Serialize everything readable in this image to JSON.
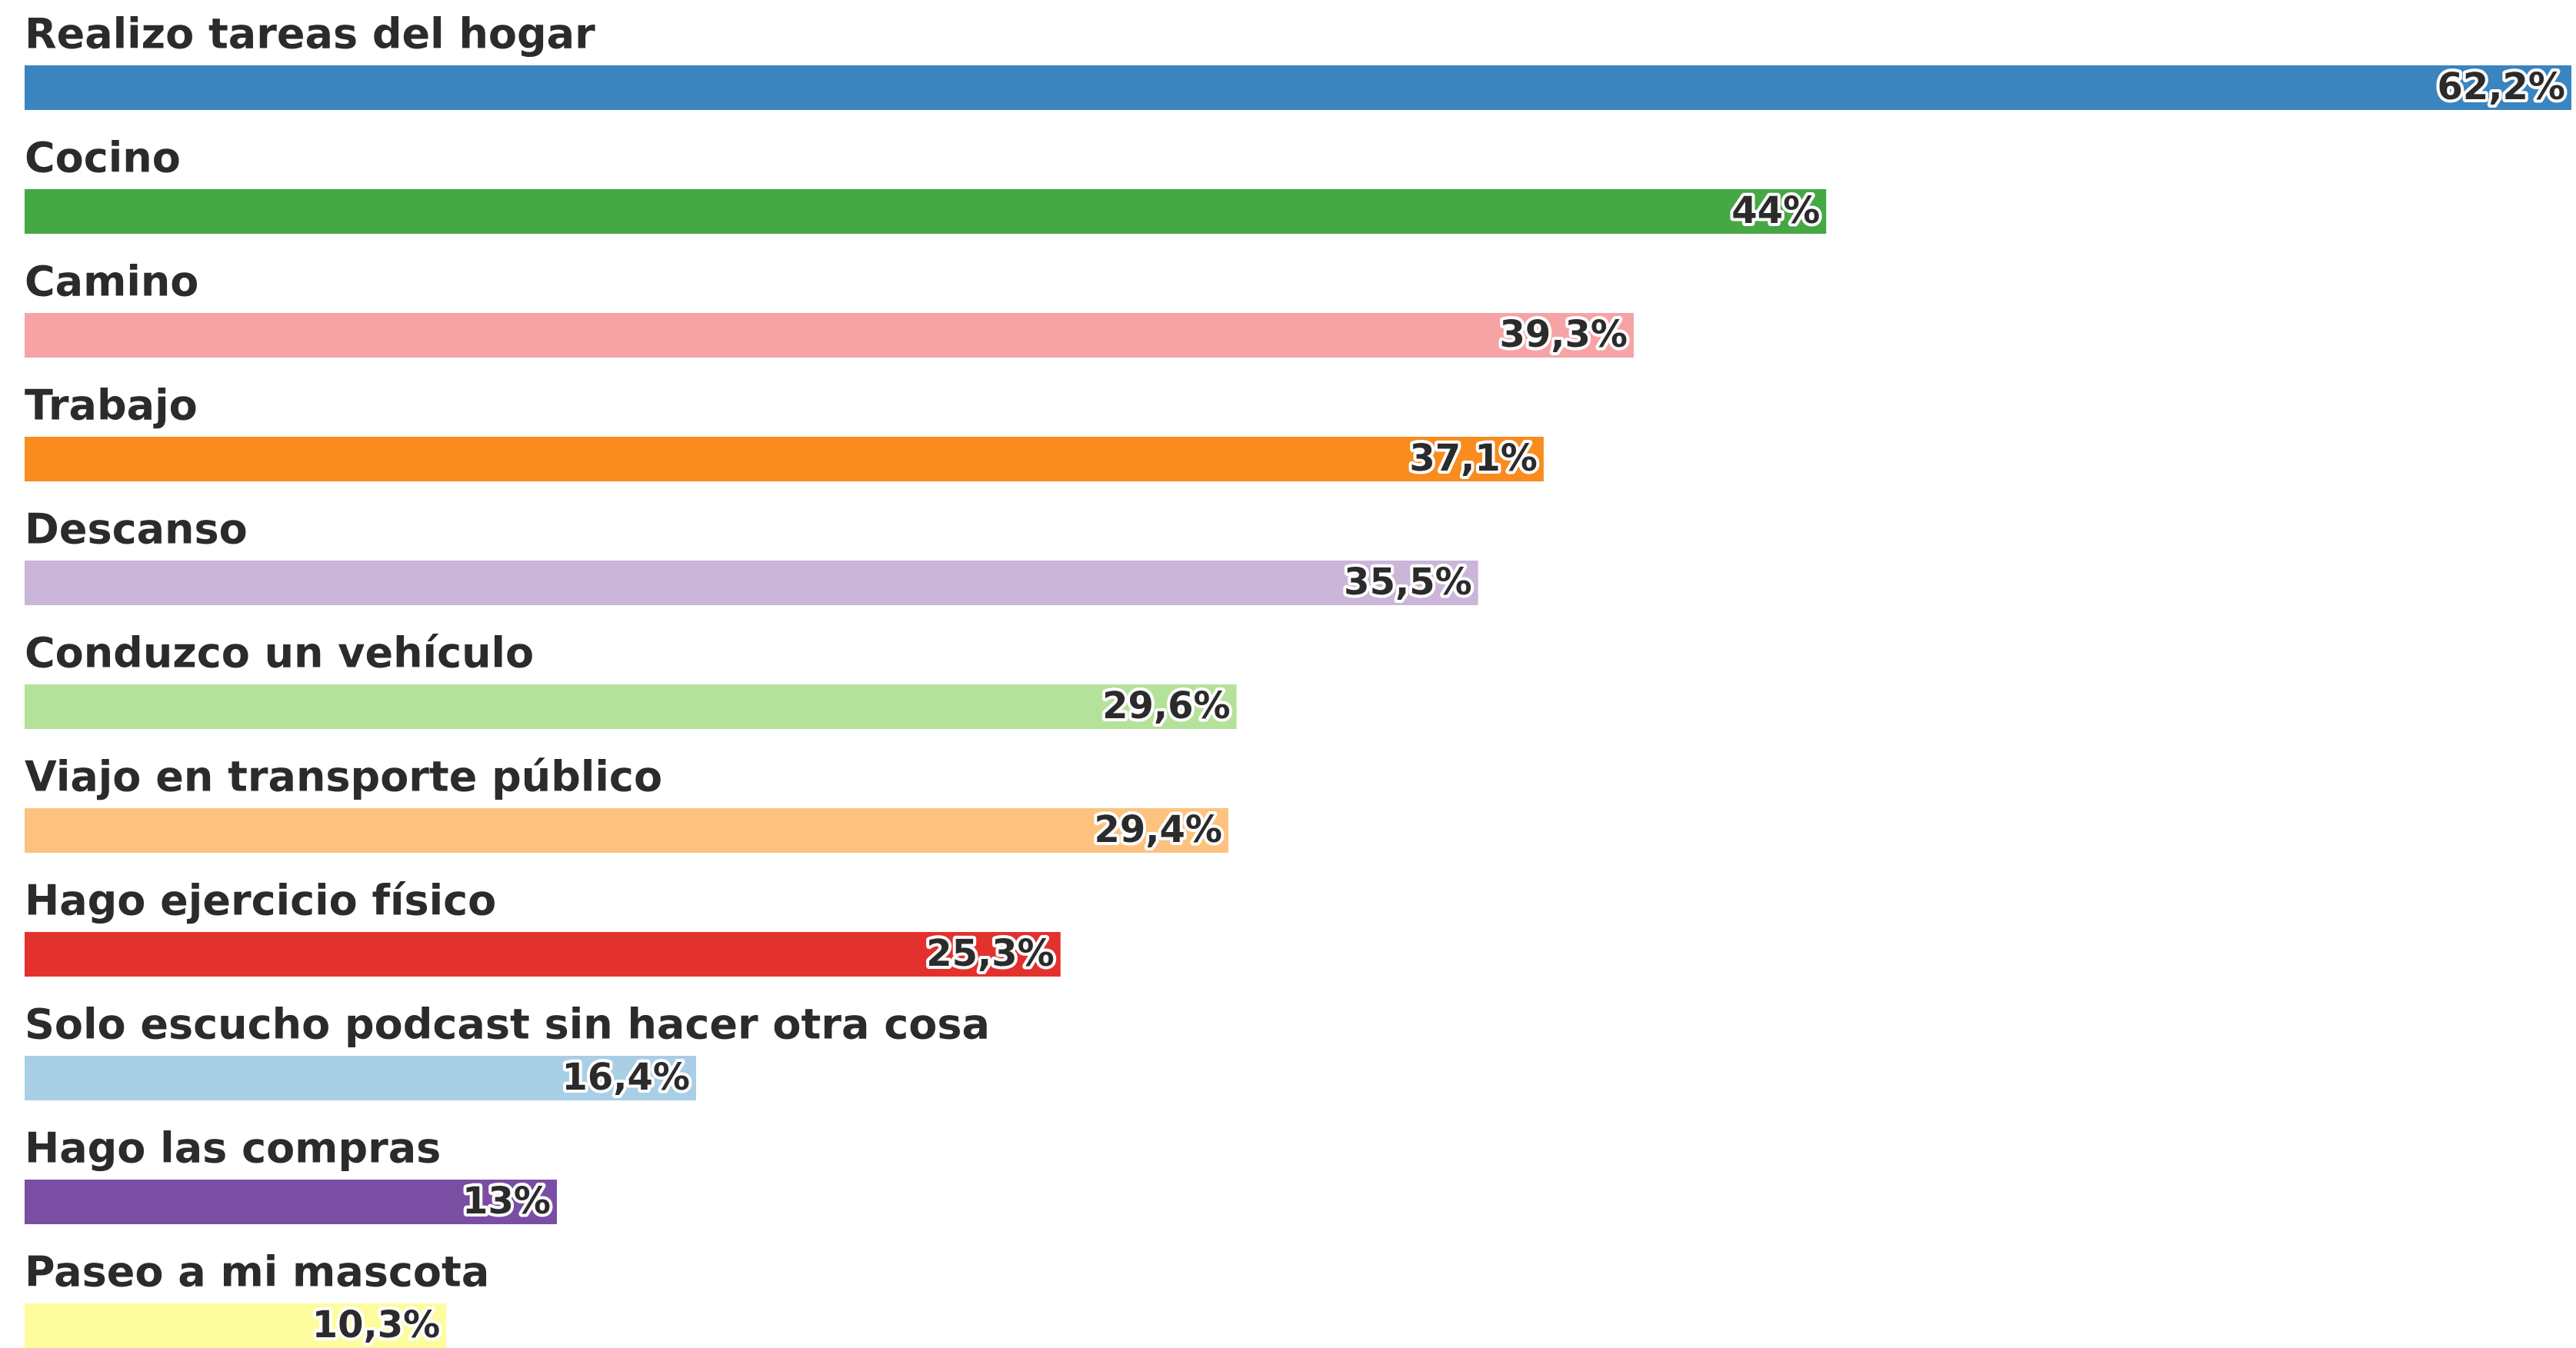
{
  "chart_data": {
    "type": "bar",
    "orientation": "horizontal",
    "categories": [
      "Realizo tareas del hogar",
      "Cocino",
      "Camino",
      "Trabajo",
      "Descanso",
      "Conduzco un vehículo",
      "Viajo en transporte público",
      "Hago ejercicio físico",
      "Solo escucho podcast sin hacer otra cosa",
      "Hago las compras",
      "Paseo a mi mascota"
    ],
    "values": [
      62.2,
      44,
      39.3,
      37.1,
      35.5,
      29.6,
      29.4,
      25.3,
      16.4,
      13,
      10.3
    ],
    "value_labels": [
      "62,2%",
      "44%",
      "39,3%",
      "37,1%",
      "35,5%",
      "29,6%",
      "29,4%",
      "25,3%",
      "16,4%",
      "13%",
      "10,3%"
    ],
    "colors": [
      "#3a84bf",
      "#45a843",
      "#f7a3a6",
      "#f98b1f",
      "#cbb5d9",
      "#b5e29a",
      "#fdc27f",
      "#e3312e",
      "#a9cfe6",
      "#7a4ea3",
      "#fdfd9f"
    ]
  }
}
